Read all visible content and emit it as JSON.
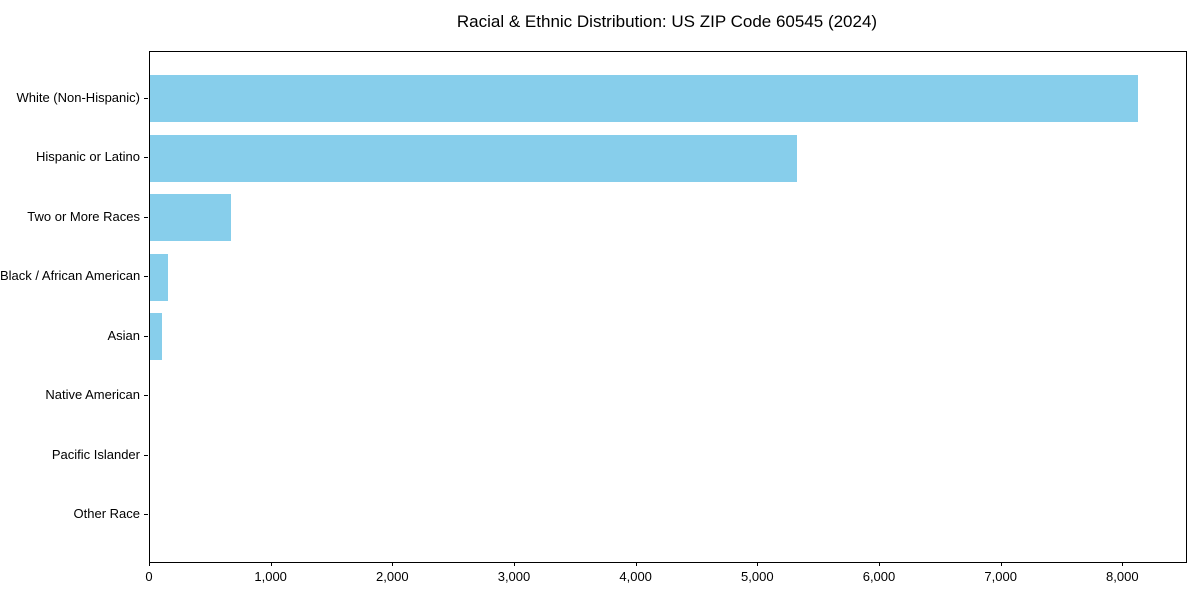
{
  "chart_data": {
    "type": "bar",
    "orientation": "horizontal",
    "title": "Racial & Ethnic Distribution: US ZIP Code 60545 (2024)",
    "categories": [
      "White (Non-Hispanic)",
      "Hispanic or Latino",
      "Two or More Races",
      "Black / African American",
      "Asian",
      "Native American",
      "Pacific Islander",
      "Other Race"
    ],
    "values": [
      8120,
      5320,
      665,
      145,
      100,
      0,
      0,
      0
    ],
    "xlabel": "",
    "ylabel": "",
    "xlim": [
      0,
      8515
    ],
    "xticks": [
      0,
      1000,
      2000,
      3000,
      4000,
      5000,
      6000,
      7000,
      8000
    ],
    "xtick_labels": [
      "0",
      "1,000",
      "2,000",
      "3,000",
      "4,000",
      "5,000",
      "6,000",
      "7,000",
      "8,000"
    ],
    "grid": false,
    "legend": null,
    "bar_color": "#87CEEB",
    "axis_color": "#000000",
    "text_color": "#000000",
    "background_color": "#ffffff"
  }
}
